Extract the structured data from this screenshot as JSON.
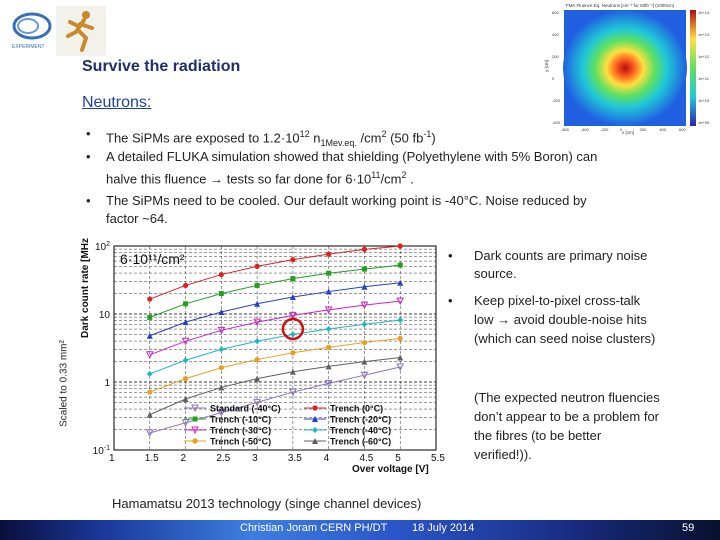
{
  "slide": {
    "title": "Survive the radiation",
    "section_heading": "Neutrons:",
    "bullets": [
      {
        "marker": "•",
        "line1": "The SiPMs are exposed to 1.2·10",
        "line1_sup": "12",
        "line1_tail": " n",
        "line1_sub": "1Mev.eq.",
        "line1_end": " /cm",
        "line1_sup2": "2",
        "line1_fb": "  (50 fb",
        "line1_fbsup": "-1",
        "line1_fbend": ")"
      },
      {
        "marker": "•",
        "line1": "A detailed FLUKA simulation showed that shielding (Polyethylene with 5% Boron) can",
        "line2a": "halve this fluence ",
        "arrow": "→",
        "line2b": " tests so far done for 6·10",
        "line2_sup": "11",
        "line2_end": "/cm",
        "line2_sup2": "2",
        "line2_dot": " ."
      },
      {
        "marker": "•",
        "line1": "The SiPMs need to be cooled. Our default working point is -40°C. Noise reduced by",
        "line2": "factor ~64."
      }
    ],
    "right_bullets": [
      {
        "marker": "•",
        "lines": [
          "Dark counts are primary noise",
          "source."
        ]
      },
      {
        "marker": "•",
        "line1a": "Keep pixel-to-pixel cross-talk",
        "line2a": "low ",
        "arrow": "→",
        "line2b": " avoid double-noise hits",
        "line3": "(which can seed noise clusters)"
      }
    ],
    "note_lines": [
      "(The expected neutron fluencies",
      "don’t appear to be a problem for",
      "the fibres (to be better",
      "verified!))."
    ],
    "scaled_label": "Scaled to 0.33 mm²",
    "hamamatsu_caption": "Hamamatsu 2013 technology (singe channel devices)"
  },
  "footer": {
    "author": "Christian Joram   CERN   PH/DT",
    "date": "18 July 2014",
    "page": "59"
  },
  "heatmap": {
    "title": "FMA Fluence Eq. Neutrons [cm⁻² for 50fb⁻¹] (1000cm)",
    "ylabel": "y [cm]",
    "xlabel": "x [cm]",
    "xticks": [
      "-600",
      "-400",
      "-200",
      "0",
      "200",
      "400",
      "600"
    ],
    "yticks": [
      "600",
      "400",
      "200",
      "0",
      "-200",
      "-400"
    ],
    "colorbar_ticks": [
      "1e+14",
      "1e+13",
      "1e+12",
      "1e+11",
      "1e+10",
      "1e+09"
    ]
  },
  "chart_data": {
    "type": "line",
    "annotation": "6·10¹¹/cm²",
    "xlabel": "Over voltage [V]",
    "ylabel": "Dark count rate [MHz]",
    "xlim": [
      1,
      5.5
    ],
    "ylim_log10": [
      -1,
      2
    ],
    "xticks": [
      "1",
      "1.5",
      "2",
      "2.5",
      "3",
      "3.5",
      "4",
      "4.5",
      "5",
      "5.5"
    ],
    "yticks": [
      {
        "label": "10",
        "sup": "-1",
        "value": -1
      },
      {
        "label": "1",
        "sup": "",
        "value": 0
      },
      {
        "label": "10",
        "sup": "",
        "value": 1
      },
      {
        "label": "10",
        "sup": "2",
        "value": 2
      }
    ],
    "series": [
      {
        "name": "Standard (-40°C)",
        "color": "#8a6fc8",
        "marker": "triangle-down",
        "x": [
          1.5,
          2,
          2.5,
          3,
          3.5,
          4,
          4.5,
          5
        ],
        "log10y": [
          -0.75,
          -0.6,
          -0.45,
          -0.3,
          -0.15,
          -0.02,
          0.1,
          0.22
        ]
      },
      {
        "name": "Trench (0°C)",
        "color": "#e02020",
        "marker": "circle",
        "x": [
          1.5,
          2,
          2.5,
          3,
          3.5,
          4,
          4.5,
          5
        ],
        "log10y": [
          1.22,
          1.42,
          1.58,
          1.7,
          1.8,
          1.88,
          1.95,
          2.0
        ]
      },
      {
        "name": "Trench (-10°C)",
        "color": "#20a020",
        "marker": "square",
        "x": [
          1.5,
          2,
          2.5,
          3,
          3.5,
          4,
          4.5,
          5
        ],
        "log10y": [
          0.95,
          1.15,
          1.3,
          1.42,
          1.52,
          1.6,
          1.66,
          1.72
        ]
      },
      {
        "name": "Trench (-20°C)",
        "color": "#2040c8",
        "marker": "triangle-up",
        "x": [
          1.5,
          2,
          2.5,
          3,
          3.5,
          4,
          4.5,
          5
        ],
        "log10y": [
          0.68,
          0.88,
          1.03,
          1.15,
          1.25,
          1.33,
          1.4,
          1.46
        ]
      },
      {
        "name": "Trench (-30°C)",
        "color": "#d020c8",
        "marker": "triangle-down",
        "x": [
          1.5,
          2,
          2.5,
          3,
          3.5,
          4,
          4.5,
          5
        ],
        "log10y": [
          0.4,
          0.6,
          0.76,
          0.88,
          0.98,
          1.06,
          1.13,
          1.19
        ]
      },
      {
        "name": "Trench (-40°C)",
        "color": "#20b8c8",
        "marker": "diamond",
        "x": [
          1.5,
          2,
          2.5,
          3,
          3.5,
          4,
          4.5,
          5
        ],
        "log10y": [
          0.12,
          0.32,
          0.48,
          0.6,
          0.7,
          0.78,
          0.85,
          0.91
        ]
      },
      {
        "name": "Trench (-50°C)",
        "color": "#e8a020",
        "marker": "circle",
        "x": [
          1.5,
          2,
          2.5,
          3,
          3.5,
          4,
          4.5,
          5
        ],
        "log10y": [
          -0.15,
          0.05,
          0.21,
          0.33,
          0.43,
          0.51,
          0.58,
          0.64
        ]
      },
      {
        "name": "Trench (-60°C)",
        "color": "#606060",
        "marker": "triangle-up",
        "x": [
          1.5,
          2,
          2.5,
          3,
          3.5,
          4,
          4.5,
          5
        ],
        "log10y": [
          -0.48,
          -0.25,
          -0.08,
          0.05,
          0.15,
          0.23,
          0.3,
          0.36
        ]
      }
    ],
    "highlight": {
      "x": 3.5,
      "log10y": 0.78,
      "color": "#d01010"
    },
    "colors": {
      "grid": "#000000",
      "axis": "#000000"
    }
  }
}
